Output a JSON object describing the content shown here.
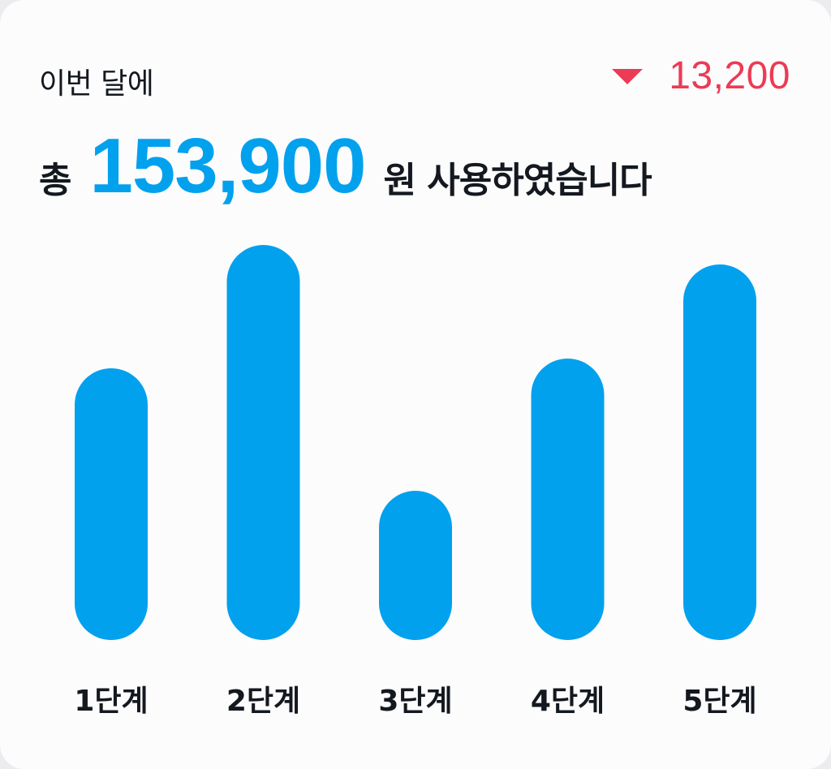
{
  "header": {
    "period_label": "이번 달에",
    "change_value": "13,200",
    "change_direction": "down",
    "change_color": "#ec3b55",
    "prefix": "총",
    "total_amount": "153,900",
    "suffix": "원 사용하였습니다"
  },
  "colors": {
    "bar": "#02a1ee",
    "amount": "#02a1ee",
    "text": "#14181f",
    "decrease": "#ec3b55"
  },
  "chart_data": {
    "type": "bar",
    "categories": [
      "1단계",
      "2단계",
      "3단계",
      "4단계",
      "5단계"
    ],
    "values": [
      335,
      487,
      184,
      347,
      463
    ],
    "ylim": [
      0,
      500
    ],
    "grid": false
  }
}
